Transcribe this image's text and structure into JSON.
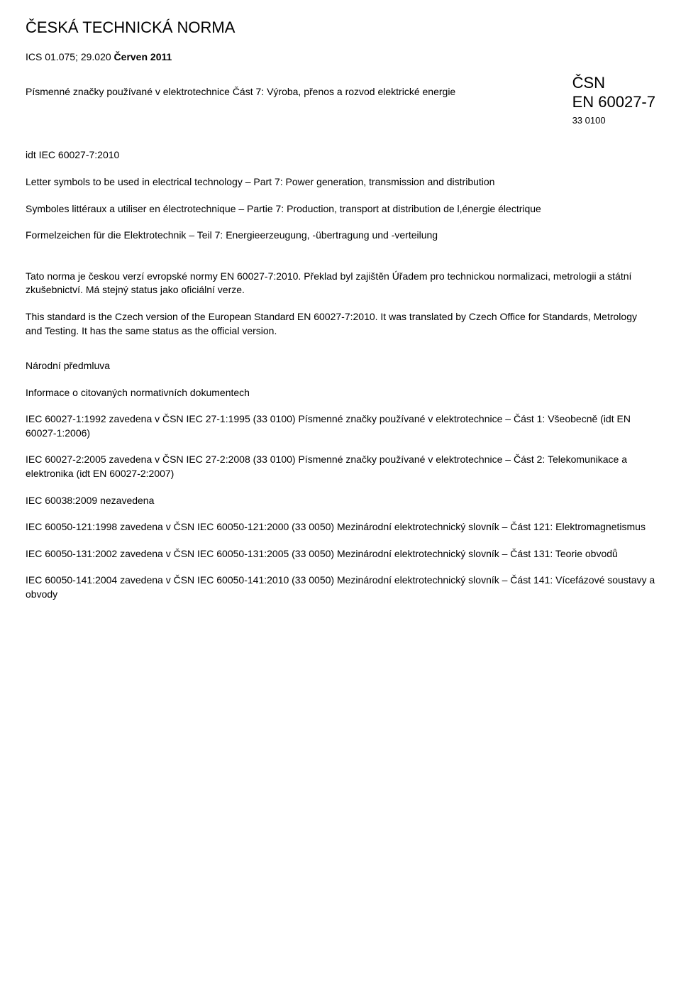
{
  "header": {
    "title": "ČESKÁ TECHNICKÁ NORMA",
    "ics_label": "ICS 01.075; 29.020",
    "date_label": "Červen 2011"
  },
  "subtitle": {
    "main": "Písmenné značky používané v elektrotechnice Část 7: Výroba, přenos a rozvod elektrické energie",
    "csn": "ČSN",
    "en_code": "EN 60027-7",
    "small_code": "33 0100"
  },
  "idt_line": "idt IEC 60027-7:2010",
  "langs": {
    "en": "Letter symbols to be used in electrical technology – Part 7: Power generation, transmission and distribution",
    "fr": "Symboles littéraux a utiliser en électrotechnique – Partie 7: Production, transport at distribution de l,énergie électrique",
    "de": "Formelzeichen für die Elektrotechnik – Teil 7: Energieerzeugung, -übertragung und -verteilung"
  },
  "paras": {
    "cz": "Tato norma je českou verzí evropské normy EN 60027-7:2010. Překlad byl zajištěn Úřadem pro technickou normalizaci, metrologii a státní zkušebnictví. Má stejný status jako oficiální verze.",
    "en": "This standard is the Czech version of the European Standard EN 60027-7:2010. It was translated by Czech Office for Standards, Metrology and Testing. It has the same status as the official version."
  },
  "national_preface": "Národní předmluva",
  "info_head": "Informace o citovaných normativních dokumentech",
  "refs": {
    "r1": "IEC 60027-1:1992 zavedena v ČSN IEC 27-1:1995 (33 0100) Písmenné značky používané v elektrotechnice – Část 1: Všeobecně (idt EN 60027-1:2006)",
    "r2": "IEC 60027-2:2005 zavedena v ČSN IEC 27-2:2008 (33 0100) Písmenné značky používané v elektrotechnice – Část 2: Telekomunikace a elektronika (idt EN 60027-2:2007)",
    "r3": "IEC 60038:2009 nezavedena",
    "r4": "IEC 60050-121:1998 zavedena v ČSN IEC 60050-121:2000 (33 0050) Mezinárodní elektrotechnický slovník – Část 121: Elektromagnetismus",
    "r5": "IEC 60050-131:2002 zavedena v ČSN IEC 60050-131:2005 (33 0050) Mezinárodní elektrotechnický slovník – Část 131: Teorie obvodů",
    "r6": "IEC 60050-141:2004 zavedena v ČSN IEC 60050-141:2010 (33 0050) Mezinárodní elektrotechnický slovník – Část 141: Vícefázové soustavy a obvody"
  }
}
